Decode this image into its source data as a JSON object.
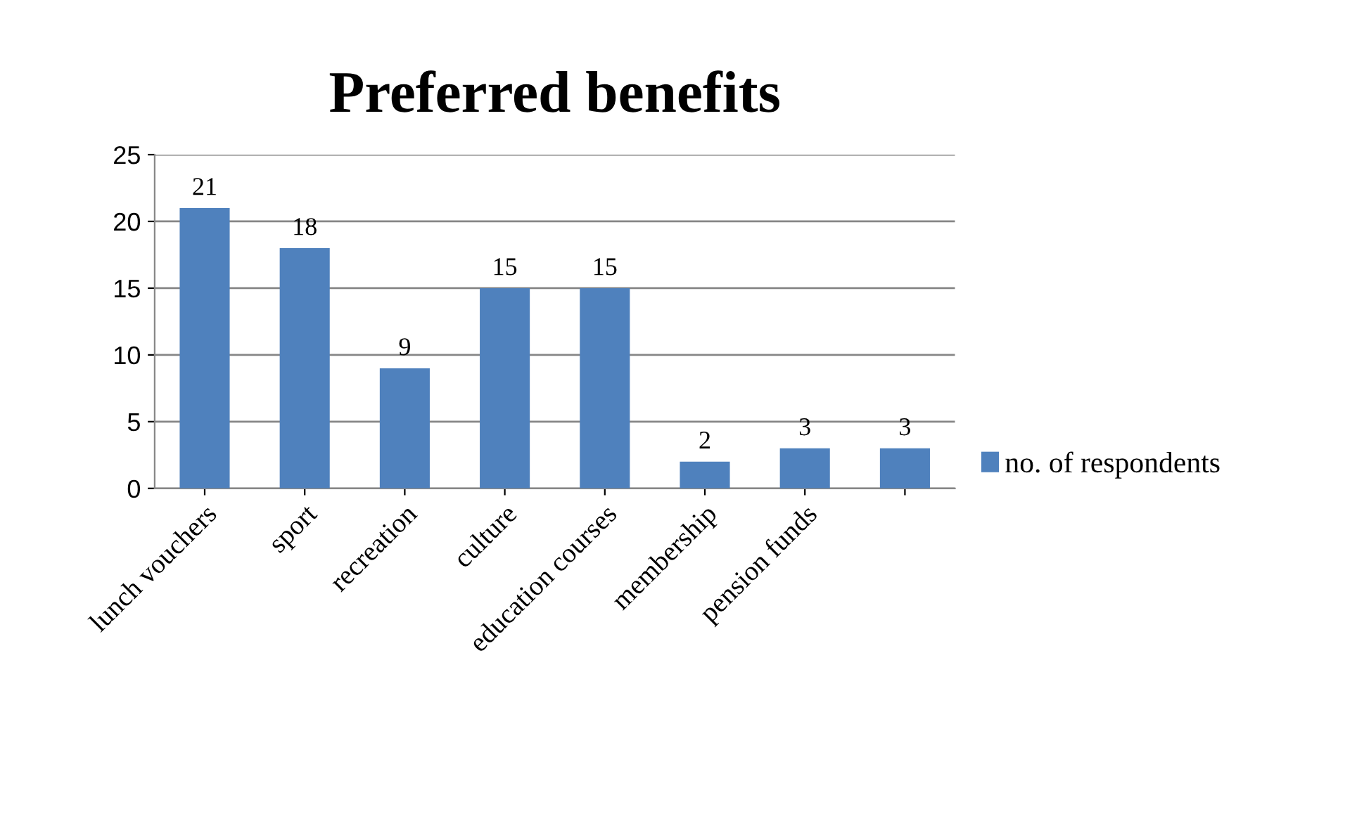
{
  "chart_data": {
    "type": "bar",
    "title": "Preferred benefits",
    "categories": [
      "lunch vouchers",
      "sport",
      "recreation",
      "culture",
      "education courses",
      "membership",
      "pension funds",
      null
    ],
    "series": [
      {
        "name": "no. of respondents",
        "color": "#4f81bd",
        "values": [
          21,
          18,
          9,
          15,
          15,
          2,
          3,
          3
        ]
      }
    ],
    "ylim": [
      0,
      25
    ],
    "yticks": [
      0,
      5,
      10,
      15,
      20,
      25
    ],
    "grid": "y",
    "legend": "right",
    "data_labels": true
  }
}
